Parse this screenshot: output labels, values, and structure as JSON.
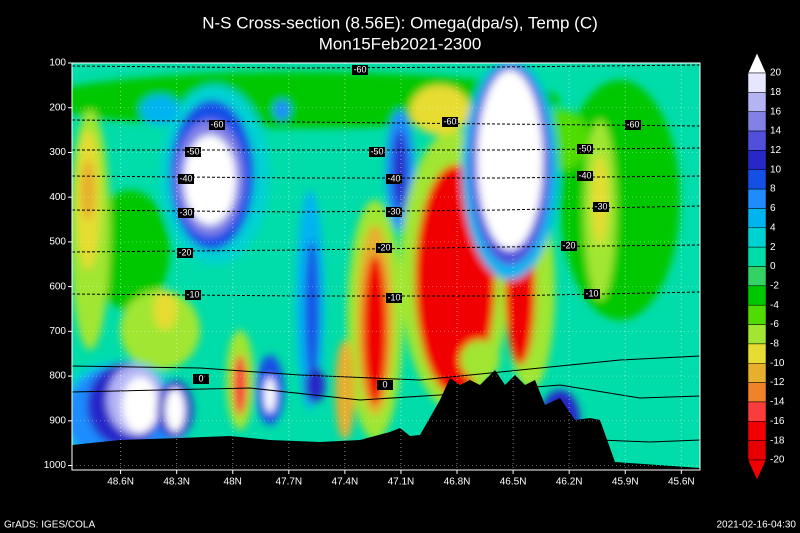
{
  "chart_data": {
    "type": "cross-section",
    "title": "N-S Cross-section (8.56E): Omega(dpa/s), Temp (C)",
    "subtitle": "Mon15Feb2021-2300",
    "xlim": [
      48.86,
      45.5
    ],
    "xticks": [
      {
        "value": 48.6,
        "label": "48.6N"
      },
      {
        "value": 48.3,
        "label": "48.3N"
      },
      {
        "value": 48,
        "label": "48N"
      },
      {
        "value": 47.7,
        "label": "47.7N"
      },
      {
        "value": 47.4,
        "label": "47.4N"
      },
      {
        "value": 47.1,
        "label": "47.1N"
      },
      {
        "value": 46.8,
        "label": "46.8N"
      },
      {
        "value": 46.5,
        "label": "46.5N"
      },
      {
        "value": 46.2,
        "label": "46.2N"
      },
      {
        "value": 45.9,
        "label": "45.9N"
      },
      {
        "value": 45.6,
        "label": "45.6N"
      }
    ],
    "ylim": [
      1010,
      100
    ],
    "yticks": [
      100,
      200,
      300,
      400,
      500,
      600,
      700,
      800,
      900,
      1000
    ],
    "isotherm_labels": [
      -60,
      -60,
      -60,
      -60,
      -50,
      -50,
      -50,
      -40,
      -40,
      -40,
      -30,
      -30,
      -30,
      -20,
      -20,
      -20,
      -10,
      -10,
      -10,
      0,
      0
    ],
    "colorbar": {
      "levels": [
        20,
        18,
        16,
        14,
        12,
        10,
        8,
        6,
        4,
        2,
        0,
        -2,
        -4,
        -6,
        -8,
        -10,
        -12,
        -14,
        -16,
        -18,
        -20
      ],
      "colors": [
        "#ffffff",
        "#e6e6ff",
        "#b4b4f5",
        "#8282e6",
        "#5050dc",
        "#2828c8",
        "#1450e6",
        "#1e8cff",
        "#00b4f0",
        "#00d2d2",
        "#00dcaa",
        "#32d264",
        "#00c800",
        "#50dc00",
        "#a0e632",
        "#e6dc32",
        "#e6af2d",
        "#f08228",
        "#fa3c3c",
        "#f00000",
        "#e60000",
        "#f00000"
      ]
    },
    "footer_left": "GrADS: IGES/COLA",
    "footer_right": "2021-02-16-04:30"
  }
}
